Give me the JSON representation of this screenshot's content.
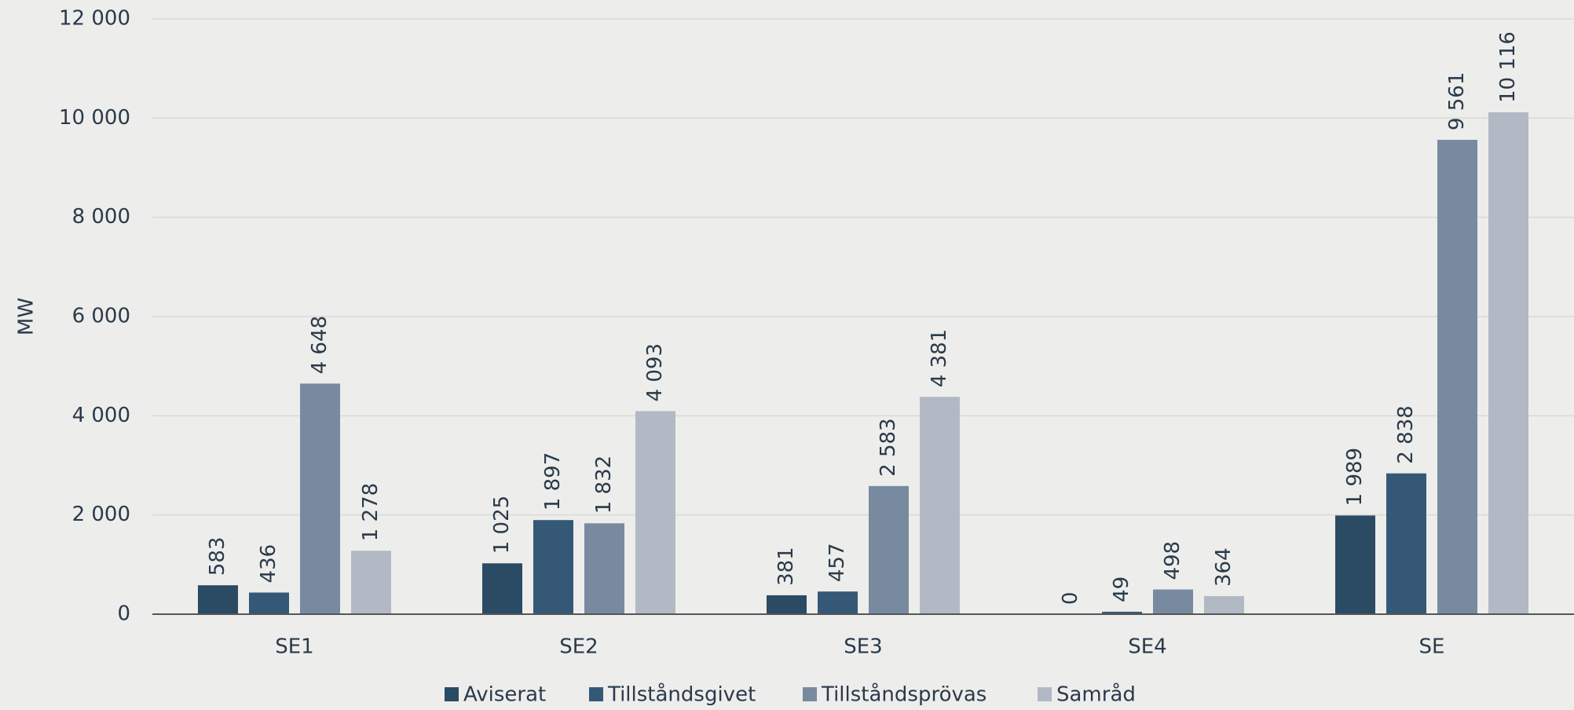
{
  "chart_data": {
    "type": "bar",
    "y_label": "MW",
    "categories": [
      "SE1",
      "SE2",
      "SE3",
      "SE4",
      "SE"
    ],
    "series": [
      {
        "name": "Aviserat",
        "color": "#2b4a63",
        "values": [
          583,
          1025,
          381,
          0,
          1989
        ],
        "value_labels": [
          "583",
          "1 025",
          "381",
          "0",
          "1 989"
        ]
      },
      {
        "name": "Tillståndsgivet",
        "color": "#355877",
        "values": [
          436,
          1897,
          457,
          49,
          2838
        ],
        "value_labels": [
          "436",
          "1 897",
          "457",
          "49",
          "2 838"
        ]
      },
      {
        "name": "Tillståndsprövas",
        "color": "#778aa0",
        "values": [
          4648,
          1832,
          2583,
          498,
          9561
        ],
        "value_labels": [
          "4 648",
          "1 832",
          "2 583",
          "498",
          "9 561"
        ]
      },
      {
        "name": "Samråd",
        "color": "#b2b9c4",
        "values": [
          1278,
          4093,
          4381,
          364,
          10116
        ],
        "value_labels": [
          "1 278",
          "4 093",
          "4 381",
          "364",
          "10 116"
        ]
      }
    ],
    "ylim": [
      0,
      12000
    ],
    "yticks": [
      0,
      {
        "value": 2000,
        "label": "2 000"
      },
      {
        "value": 4000,
        "label": "4 000"
      },
      {
        "value": 6000,
        "label": "6 000"
      },
      {
        "value": 8000,
        "label": "8 000"
      },
      {
        "value": 10000,
        "label": "10 000"
      },
      {
        "value": 12000,
        "label": "12 000"
      }
    ],
    "grid": true,
    "legend": "bottom"
  }
}
